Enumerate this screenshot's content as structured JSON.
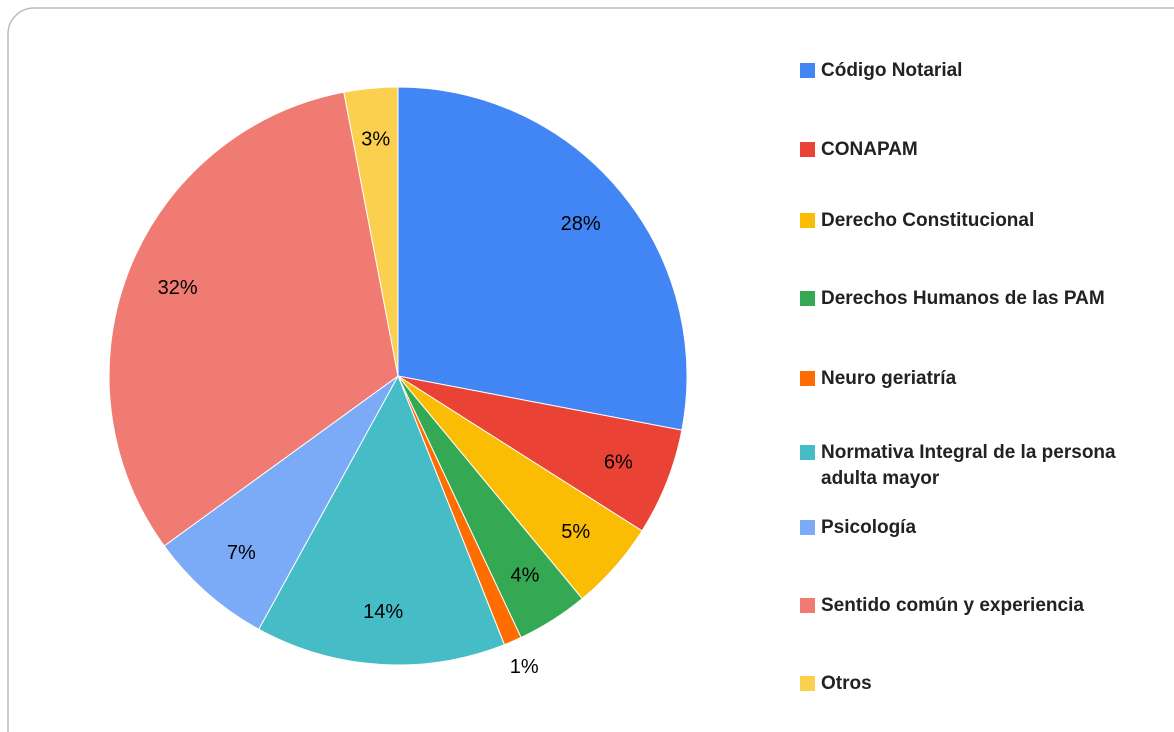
{
  "chart_data": {
    "type": "pie",
    "categories": [
      "Código Notarial",
      "CONAPAM",
      "Derecho Constitucional",
      "Derechos Humanos de las PAM",
      "Neuro geriatría",
      "Normativa Integral de la persona adulta mayor",
      "Psicología",
      "Sentido común y experiencia",
      "Otros"
    ],
    "values": [
      28,
      6,
      5,
      4,
      1,
      14,
      7,
      32,
      3
    ],
    "value_labels": [
      "28%",
      "6%",
      "5%",
      "4%",
      "1%",
      "14%",
      "7%",
      "32%",
      "3%"
    ],
    "colors": [
      "#4285f4",
      "#ea4335",
      "#fbbc04",
      "#34a853",
      "#ff6d01",
      "#46bdc6",
      "#7baaf7",
      "#f07b72",
      "#fcd04f"
    ],
    "legend": "right"
  }
}
